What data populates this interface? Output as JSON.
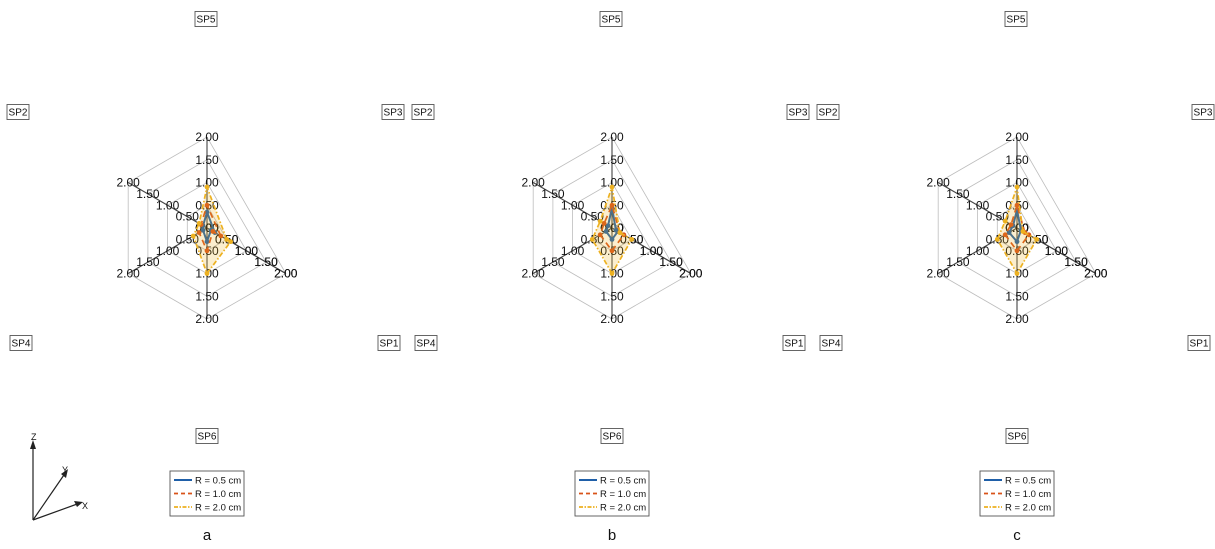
{
  "chart_data": [
    {
      "type": "radar",
      "panel_label": "a",
      "axes": [
        "SP1",
        "SP5",
        "SP2",
        "SP4",
        "SP6",
        "SP3"
      ],
      "tick_labels": [
        "0.00",
        "0.50",
        "1.00",
        "1.50",
        "2.00"
      ],
      "rlim": [
        0,
        2
      ],
      "grid": true,
      "legend_position": "bottom",
      "series": [
        {
          "name": "R = 0.5 cm",
          "values": [
            0.2,
            0.35,
            0.1,
            0.1,
            0.3,
            0.1
          ]
        },
        {
          "name": "R = 1.0 cm",
          "values": [
            0.35,
            0.5,
            0.15,
            0.2,
            0.5,
            0.15
          ]
        },
        {
          "name": "R = 2.0 cm",
          "values": [
            0.5,
            0.9,
            0.2,
            0.35,
            1.0,
            0.6
          ]
        }
      ]
    },
    {
      "type": "radar",
      "panel_label": "b",
      "axes": [
        "SP1",
        "SP5",
        "SP2",
        "SP4",
        "SP6",
        "SP3"
      ],
      "tick_labels": [
        "0.00",
        "0.50",
        "1.00",
        "1.50",
        "2.00"
      ],
      "rlim": [
        0,
        2
      ],
      "grid": true,
      "legend_position": "bottom",
      "series": [
        {
          "name": "R = 0.5 cm",
          "values": [
            0.1,
            0.45,
            0.1,
            0.15,
            0.25,
            0.15
          ]
        },
        {
          "name": "R = 1.0 cm",
          "values": [
            0.2,
            0.5,
            0.2,
            0.3,
            0.5,
            0.3
          ]
        },
        {
          "name": "R = 2.0 cm",
          "values": [
            0.2,
            0.9,
            0.3,
            0.5,
            1.0,
            0.5
          ]
        }
      ]
    },
    {
      "type": "radar",
      "panel_label": "c",
      "axes": [
        "SP1",
        "SP5",
        "SP2",
        "SP4",
        "SP6",
        "SP3"
      ],
      "tick_labels": [
        "0.00",
        "0.50",
        "1.00",
        "1.50",
        "2.00"
      ],
      "rlim": [
        0,
        2
      ],
      "grid": true,
      "legend_position": "bottom",
      "series": [
        {
          "name": "R = 0.5 cm",
          "values": [
            0.1,
            0.4,
            0.1,
            0.2,
            0.3,
            0.1
          ]
        },
        {
          "name": "R = 1.0 cm",
          "values": [
            0.2,
            0.5,
            0.15,
            0.3,
            0.5,
            0.3
          ]
        },
        {
          "name": "R = 2.0 cm",
          "values": [
            0.15,
            0.9,
            0.3,
            0.5,
            1.0,
            0.5
          ]
        }
      ]
    }
  ],
  "series_colors": [
    "#1f5fa8",
    "#d95319",
    "#edb120"
  ],
  "fill_color": "#edb120",
  "coordinate_icon": {
    "axis_labels": [
      "Z",
      "Y",
      "X"
    ]
  }
}
